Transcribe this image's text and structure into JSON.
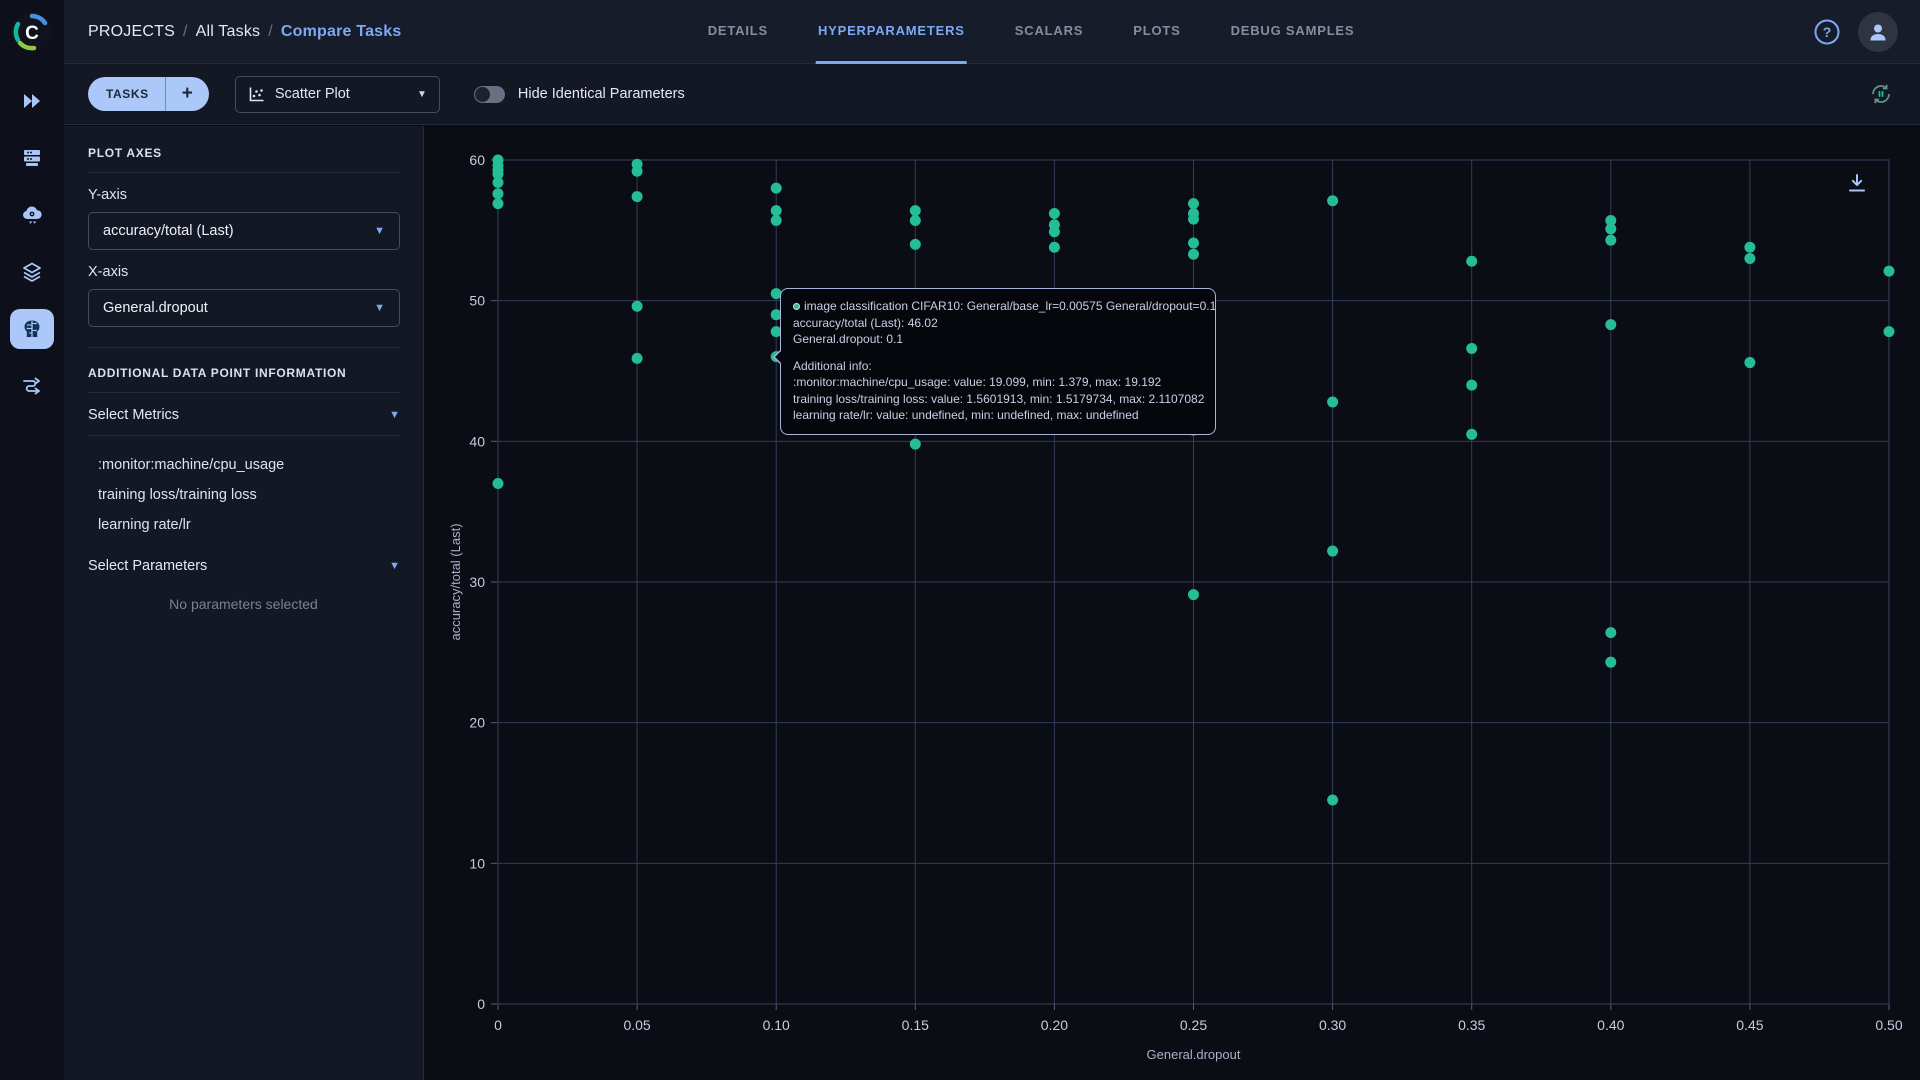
{
  "header": {
    "breadcrumbs": [
      {
        "label": "PROJECTS"
      },
      {
        "label": "All Tasks"
      },
      {
        "label": "Compare Tasks"
      }
    ],
    "tabs": [
      {
        "label": "DETAILS",
        "active": false
      },
      {
        "label": "HYPERPARAMETERS",
        "active": true
      },
      {
        "label": "SCALARS",
        "active": false
      },
      {
        "label": "PLOTS",
        "active": false
      },
      {
        "label": "DEBUG SAMPLES",
        "active": false
      }
    ]
  },
  "sidebar_rail": {
    "icons": [
      "clearml-logo",
      "projects-icon",
      "queues-icon",
      "autoscaler-icon",
      "datasets-icon",
      "experiments-icon",
      "pipelines-icon"
    ],
    "active_icon": "experiments-icon"
  },
  "toolbar": {
    "tasks_button_label": "TASKS",
    "add_button_label": "+",
    "plot_type_value": "Scatter Plot",
    "toggle_label": "Hide Identical Parameters",
    "toggle_state": "off"
  },
  "panel": {
    "plot_axes_title": "PLOT AXES",
    "y_axis_label": "Y-axis",
    "y_axis_value": "accuracy/total (Last)",
    "x_axis_label": "X-axis",
    "x_axis_value": "General.dropout",
    "additional_title": "ADDITIONAL DATA POINT INFORMATION",
    "select_metrics_label": "Select Metrics",
    "metrics": [
      ":monitor:machine/cpu_usage",
      "training loss/training loss",
      "learning rate/lr"
    ],
    "select_parameters_label": "Select Parameters",
    "no_parameters_text": "No parameters selected"
  },
  "tooltip": {
    "title": "image classification CIFAR10: General/base_lr=0.00575 General/dropout=0.1",
    "lines": [
      "accuracy/total (Last): 46.02",
      "General.dropout: 0.1"
    ],
    "additional_header": "Additional info:",
    "additional": [
      ":monitor:machine/cpu_usage: value: 19.099, min: 1.379, max: 19.192",
      "training loss/training loss: value: 1.5601913, min: 1.5179734, max: 2.1107082",
      "learning rate/lr: value: undefined, min: undefined, max: undefined"
    ]
  },
  "chart_data": {
    "type": "scatter",
    "series_name": "accuracy/total (Last)",
    "xlabel": "General.dropout",
    "ylabel": "accuracy/total (Last)",
    "xlim": [
      0,
      0.5
    ],
    "ylim": [
      0,
      60
    ],
    "x_ticks": [
      0,
      0.05,
      0.1,
      0.15,
      0.2,
      0.25,
      0.3,
      0.35,
      0.4,
      0.45,
      0.5
    ],
    "x_tick_labels": [
      "0",
      "0.05",
      "0.10",
      "0.15",
      "0.20",
      "0.25",
      "0.30",
      "0.35",
      "0.40",
      "0.45",
      "0.50"
    ],
    "y_ticks": [
      0,
      10,
      20,
      30,
      40,
      50,
      60
    ],
    "grid": true,
    "point_color": "#24bd95",
    "hovered_point": [
      0.1,
      46.02
    ],
    "points": [
      [
        0,
        60.0
      ],
      [
        0,
        59.6
      ],
      [
        0,
        59.3
      ],
      [
        0,
        59.0
      ],
      [
        0,
        58.4
      ],
      [
        0,
        57.6
      ],
      [
        0,
        56.9
      ],
      [
        0,
        37.0
      ],
      [
        0.05,
        59.7
      ],
      [
        0.05,
        59.2
      ],
      [
        0.05,
        57.4
      ],
      [
        0.05,
        49.6
      ],
      [
        0.05,
        45.9
      ],
      [
        0.1,
        58.0
      ],
      [
        0.1,
        56.4
      ],
      [
        0.1,
        55.7
      ],
      [
        0.1,
        50.5
      ],
      [
        0.1,
        49.0
      ],
      [
        0.1,
        47.8
      ],
      [
        0.1,
        46.02
      ],
      [
        0.15,
        56.4
      ],
      [
        0.15,
        55.7
      ],
      [
        0.15,
        54.0
      ],
      [
        0.15,
        39.8
      ],
      [
        0.2,
        56.2
      ],
      [
        0.2,
        55.4
      ],
      [
        0.2,
        54.9
      ],
      [
        0.2,
        53.8
      ],
      [
        0.25,
        56.9
      ],
      [
        0.25,
        56.2
      ],
      [
        0.25,
        55.8
      ],
      [
        0.25,
        54.1
      ],
      [
        0.25,
        53.3
      ],
      [
        0.25,
        40.8
      ],
      [
        0.25,
        29.1
      ],
      [
        0.3,
        57.1
      ],
      [
        0.3,
        42.8
      ],
      [
        0.3,
        32.2
      ],
      [
        0.3,
        14.5
      ],
      [
        0.35,
        52.8
      ],
      [
        0.35,
        46.6
      ],
      [
        0.35,
        44.0
      ],
      [
        0.35,
        40.5
      ],
      [
        0.4,
        55.7
      ],
      [
        0.4,
        55.1
      ],
      [
        0.4,
        54.3
      ],
      [
        0.4,
        48.3
      ],
      [
        0.4,
        26.4
      ],
      [
        0.4,
        24.3
      ],
      [
        0.45,
        53.8
      ],
      [
        0.45,
        53.0
      ],
      [
        0.45,
        45.6
      ],
      [
        0.5,
        52.1
      ],
      [
        0.5,
        47.8
      ]
    ]
  }
}
